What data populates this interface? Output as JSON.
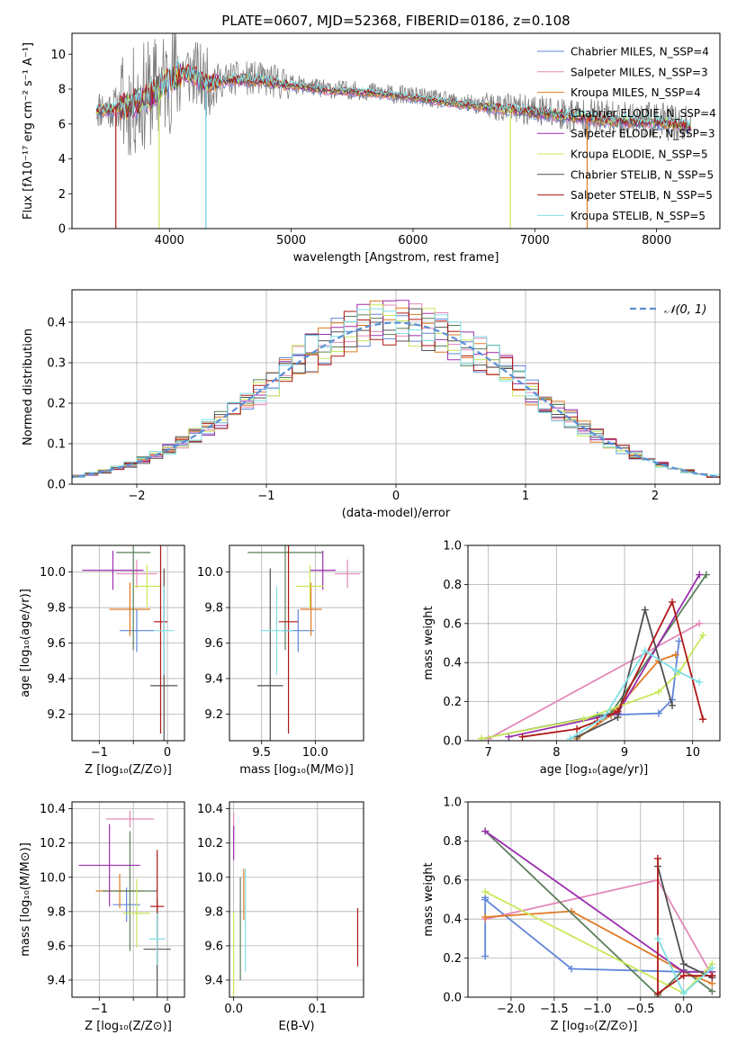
{
  "chart_data": [
    {
      "type": "line",
      "title": "PLATE=0607, MJD=52368, FIBERID=0186, z=0.108",
      "xlabel": "wavelength [Angstrom, rest frame]",
      "ylabel": "Flux [fλ10⁻¹⁷ erg cm⁻² s⁻¹ A⁻¹]",
      "xlim": [
        3200,
        8520
      ],
      "ylim": [
        0,
        11.2
      ],
      "xticks": [
        4000,
        5000,
        6000,
        7000,
        8000
      ],
      "yticks": [
        0,
        2,
        4,
        6,
        8,
        10
      ],
      "legend": "top-right",
      "series": [
        {
          "name": "Chabrier MILES, N_SSP=4",
          "color": "#6185d9"
        },
        {
          "name": "Salpeter MILES, N_SSP=3",
          "color": "#e388b8"
        },
        {
          "name": "Kroupa MILES, N_SSP=4",
          "color": "#e07a25"
        },
        {
          "name": "Chabrier ELODIE, N_SSP=4",
          "color": "#5a7f5a"
        },
        {
          "name": "Salpeter ELODIE, N_SSP=3",
          "color": "#9b2fae"
        },
        {
          "name": "Kroupa ELODIE, N_SSP=5",
          "color": "#c8e85a"
        },
        {
          "name": "Chabrier STELIB, N_SSP=5",
          "color": "#505050"
        },
        {
          "name": "Salpeter STELIB, N_SSP=5",
          "color": "#b01818"
        },
        {
          "name": "Kroupa STELIB, N_SSP=5",
          "color": "#7fdfe6"
        }
      ],
      "data_series": {
        "name": "data",
        "color": "#808080"
      },
      "continuum": {
        "x": [
          3400,
          3500,
          3600,
          3700,
          3800,
          3900,
          4000,
          4100,
          4200,
          4300,
          4500,
          4700,
          5000,
          5300,
          5600,
          6000,
          6400,
          6800,
          7200,
          7600,
          8000,
          8300
        ],
        "y": [
          6.9,
          6.9,
          7.0,
          7.2,
          7.6,
          8.0,
          8.6,
          9.1,
          8.9,
          8.4,
          8.6,
          8.6,
          8.3,
          8.0,
          7.9,
          7.6,
          7.2,
          6.9,
          6.6,
          6.3,
          6.2,
          5.9
        ]
      }
    },
    {
      "type": "histogram",
      "xlabel": "(data-model)/error",
      "ylabel": "Normed distribution",
      "xlim": [
        -2.5,
        2.5
      ],
      "ylim": [
        0,
        0.48
      ],
      "xticks": [
        -2,
        -1,
        0,
        1,
        2
      ],
      "yticks": [
        0.0,
        0.1,
        0.2,
        0.3,
        0.4
      ],
      "legend": "top-right",
      "reference": {
        "name": "𝒩(0, 1)",
        "color": "#5b8fd6",
        "style": "dashed"
      },
      "bin_width": 0.1
    },
    {
      "type": "scatter",
      "xlabel": "Z [log₁₀(Z/Z⊙)]",
      "ylabel": "age  [log₁₀(age/yr)]",
      "xlim": [
        -1.4,
        0.25
      ],
      "ylim": [
        9.05,
        10.15
      ],
      "xticks": [
        -1,
        -0.5,
        0
      ],
      "xtick_labels": [
        "−1",
        "",
        "0"
      ],
      "yticks": [
        9.2,
        9.4,
        9.6,
        9.8,
        10.0
      ],
      "points": [
        {
          "color": "#6185d9",
          "x": -0.45,
          "xerr": 0.25,
          "y": 9.67,
          "yerr": 0.12
        },
        {
          "color": "#e388b8",
          "x": -0.45,
          "xerr": 0.3,
          "y": 9.99,
          "yerr": 0.08
        },
        {
          "color": "#e07a25",
          "x": -0.55,
          "xerr": 0.3,
          "y": 9.79,
          "yerr": 0.15
        },
        {
          "color": "#5a7f5a",
          "x": -0.5,
          "xerr": 0.25,
          "y": 10.11,
          "yerr": 0.55
        },
        {
          "color": "#9b2fae",
          "x": -0.8,
          "xerr": 0.45,
          "y": 10.01,
          "yerr": 0.11
        },
        {
          "color": "#c8e85a",
          "x": -0.3,
          "xerr": 0.2,
          "y": 9.92,
          "yerr": 0.12
        },
        {
          "color": "#505050",
          "x": -0.05,
          "xerr": 0.2,
          "y": 9.36,
          "yerr": 0.66
        },
        {
          "color": "#b01818",
          "x": -0.1,
          "xerr": 0.1,
          "y": 9.72,
          "yerr": 0.63
        },
        {
          "color": "#7fdfe6",
          "x": -0.05,
          "xerr": 0.15,
          "y": 9.67,
          "yerr": 0.25
        }
      ]
    },
    {
      "type": "scatter",
      "xlabel": "mass [log₁₀(M/M⊙)]",
      "xlim": [
        9.2,
        10.45
      ],
      "ylim": [
        9.05,
        10.15
      ],
      "xticks": [
        9.5,
        10.0
      ],
      "xtick_labels": [
        "9.5",
        "10.0"
      ],
      "yticks": [
        9.2,
        9.4,
        9.6,
        9.8,
        10.0
      ],
      "points": [
        {
          "color": "#6185d9",
          "x": 9.84,
          "xerr": 0.15,
          "y": 9.67,
          "yerr": 0.12
        },
        {
          "color": "#e388b8",
          "x": 10.3,
          "xerr": 0.12,
          "y": 9.99,
          "yerr": 0.08
        },
        {
          "color": "#e07a25",
          "x": 9.96,
          "xerr": 0.1,
          "y": 9.79,
          "yerr": 0.15
        },
        {
          "color": "#5a7f5a",
          "x": 9.72,
          "xerr": 0.35,
          "y": 10.11,
          "yerr": 0.55
        },
        {
          "color": "#9b2fae",
          "x": 10.07,
          "xerr": 0.12,
          "y": 10.01,
          "yerr": 0.11
        },
        {
          "color": "#c8e85a",
          "x": 9.95,
          "xerr": 0.13,
          "y": 9.92,
          "yerr": 0.12
        },
        {
          "color": "#505050",
          "x": 9.58,
          "xerr": 0.12,
          "y": 9.36,
          "yerr": 0.66
        },
        {
          "color": "#b01818",
          "x": 9.75,
          "xerr": 0.09,
          "y": 9.72,
          "yerr": 0.63
        },
        {
          "color": "#7fdfe6",
          "x": 9.64,
          "xerr": 0.15,
          "y": 9.67,
          "yerr": 0.25
        }
      ]
    },
    {
      "type": "line",
      "xlabel": "age  [log₁₀(age/yr)]",
      "ylabel": "mass weight",
      "xlim": [
        6.7,
        10.4
      ],
      "ylim": [
        0,
        1.0
      ],
      "xticks": [
        7,
        8,
        9,
        10
      ],
      "yticks": [
        0.0,
        0.2,
        0.4,
        0.6,
        0.8,
        1.0
      ],
      "series": [
        {
          "color": "#6185d9",
          "x": [
            8.6,
            9.5,
            9.7,
            9.8
          ],
          "y": [
            0.13,
            0.14,
            0.21,
            0.51
          ]
        },
        {
          "color": "#e388b8",
          "x": [
            7.0,
            10.1
          ],
          "y": [
            0.01,
            0.6
          ]
        },
        {
          "color": "#e07a25",
          "x": [
            8.3,
            8.8,
            9.5,
            9.75
          ],
          "y": [
            0.01,
            0.13,
            0.41,
            0.44
          ]
        },
        {
          "color": "#5a7f5a",
          "x": [
            6.9,
            8.8,
            10.2
          ],
          "y": [
            0.01,
            0.14,
            0.85
          ]
        },
        {
          "color": "#9b2fae",
          "x": [
            7.3,
            8.9,
            10.1
          ],
          "y": [
            0.02,
            0.14,
            0.85
          ]
        },
        {
          "color": "#c8e85a",
          "x": [
            6.9,
            8.4,
            9.5,
            9.8,
            10.15
          ],
          "y": [
            0.01,
            0.11,
            0.25,
            0.35,
            0.54
          ]
        },
        {
          "color": "#505050",
          "x": [
            8.3,
            8.9,
            9.3,
            9.7
          ],
          "y": [
            0.02,
            0.12,
            0.67,
            0.18
          ]
        },
        {
          "color": "#b01818",
          "x": [
            7.5,
            8.3,
            8.6,
            8.9,
            9.7,
            10.15
          ],
          "y": [
            0.02,
            0.06,
            0.1,
            0.15,
            0.71,
            0.11
          ]
        },
        {
          "color": "#7fdfe6",
          "x": [
            8.2,
            8.7,
            9.3,
            9.75,
            10.1
          ],
          "y": [
            0.01,
            0.12,
            0.46,
            0.36,
            0.3
          ]
        }
      ]
    },
    {
      "type": "scatter",
      "xlabel": "Z [log₁₀(Z/Z⊙)]",
      "ylabel": "mass [log₁₀(M/M⊙)]",
      "xlim": [
        -1.4,
        0.25
      ],
      "ylim": [
        9.3,
        10.44
      ],
      "xticks": [
        -1,
        -0.5,
        0
      ],
      "xtick_labels": [
        "−1",
        "",
        "0"
      ],
      "yticks": [
        9.4,
        9.6,
        9.8,
        10.0,
        10.2,
        10.4
      ],
      "points": [
        {
          "color": "#6185d9",
          "x": -0.6,
          "xerr": 0.2,
          "y": 9.84,
          "yerr": 0.1
        },
        {
          "color": "#e388b8",
          "x": -0.55,
          "xerr": 0.35,
          "y": 10.34,
          "yerr": 0.05
        },
        {
          "color": "#e07a25",
          "x": -0.7,
          "xerr": 0.35,
          "y": 9.92,
          "yerr": 0.1
        },
        {
          "color": "#5a7f5a",
          "x": -0.55,
          "xerr": 0.4,
          "y": 9.92,
          "yerr": 0.35
        },
        {
          "color": "#9b2fae",
          "x": -0.85,
          "xerr": 0.45,
          "y": 10.07,
          "yerr": 0.24
        },
        {
          "color": "#c8e85a",
          "x": -0.45,
          "xerr": 0.2,
          "y": 9.79,
          "yerr": 0.2
        },
        {
          "color": "#505050",
          "x": -0.15,
          "xerr": 0.2,
          "y": 9.58,
          "yerr": 0.3
        },
        {
          "color": "#b01818",
          "x": -0.15,
          "xerr": 0.1,
          "y": 9.83,
          "yerr": 0.33
        },
        {
          "color": "#7fdfe6",
          "x": -0.15,
          "xerr": 0.12,
          "y": 9.64,
          "yerr": 0.15
        }
      ]
    },
    {
      "type": "scatter",
      "xlabel": "E(B-V)",
      "xlim": [
        -0.005,
        0.155
      ],
      "ylim": [
        9.3,
        10.44
      ],
      "xticks": [
        0.0,
        0.1
      ],
      "xtick_labels": [
        "0.0",
        "0.1"
      ],
      "yticks": [
        9.4,
        9.6,
        9.8,
        10.0,
        10.2,
        10.4
      ],
      "points": [
        {
          "color": "#e388b8",
          "x": 0.0,
          "y": 10.3,
          "yerr": 0.08
        },
        {
          "color": "#9b2fae",
          "x": 0.0,
          "y": 10.2,
          "yerr": 0.1
        },
        {
          "color": "#c8e85a",
          "x": 0.0,
          "y": 9.55,
          "yerr": 0.25
        },
        {
          "color": "#5a7f5a",
          "x": 0.008,
          "y": 9.7,
          "yerr": 0.3
        },
        {
          "color": "#e07a25",
          "x": 0.012,
          "y": 9.9,
          "yerr": 0.15
        },
        {
          "color": "#7fdfe6",
          "x": 0.014,
          "y": 9.75,
          "yerr": 0.3
        },
        {
          "color": "#b01818",
          "x": 0.148,
          "y": 9.65,
          "yerr": 0.17
        }
      ]
    },
    {
      "type": "line",
      "xlabel": "Z [log₁₀(Z/Z⊙)]",
      "ylabel": "mass weight",
      "xlim": [
        -2.5,
        0.42
      ],
      "ylim": [
        0,
        1.0
      ],
      "xticks": [
        -2.0,
        -1.5,
        -1.0,
        -0.5,
        0.0
      ],
      "xtick_labels": [
        "−2.0",
        "−1.5",
        "−1.0",
        "−0.5",
        "0.0"
      ],
      "yticks": [
        0.0,
        0.2,
        0.4,
        0.6,
        0.8,
        1.0
      ],
      "series": [
        {
          "color": "#6185d9",
          "x": [
            -2.3,
            -2.3,
            -2.3,
            -1.3,
            0.0,
            0.33
          ],
          "y": [
            0.21,
            0.51,
            0.5,
            0.145,
            0.13,
            0.13
          ]
        },
        {
          "color": "#e388b8",
          "x": [
            -2.3,
            -0.3,
            0.33
          ],
          "y": [
            0.4,
            0.6,
            0.11
          ]
        },
        {
          "color": "#e07a25",
          "x": [
            -2.3,
            -1.3,
            0.0,
            0.33
          ],
          "y": [
            0.41,
            0.44,
            0.13,
            0.07
          ]
        },
        {
          "color": "#5a7f5a",
          "x": [
            -2.3,
            -0.3,
            0.0,
            0.33
          ],
          "y": [
            0.85,
            0.01,
            0.14,
            0.03
          ]
        },
        {
          "color": "#9b2fae",
          "x": [
            -2.3,
            0.0,
            0.33
          ],
          "y": [
            0.85,
            0.13,
            0.13
          ]
        },
        {
          "color": "#c8e85a",
          "x": [
            -2.3,
            0.0,
            0.33
          ],
          "y": [
            0.54,
            0.02,
            0.17
          ]
        },
        {
          "color": "#505050",
          "x": [
            -0.3,
            0.0,
            0.33
          ],
          "y": [
            0.67,
            0.17,
            0.1
          ]
        },
        {
          "color": "#b01818",
          "x": [
            -0.3,
            -0.3,
            0.0,
            0.33
          ],
          "y": [
            0.71,
            0.02,
            0.11,
            0.11
          ]
        },
        {
          "color": "#7fdfe6",
          "x": [
            -0.3,
            0.0,
            0.33
          ],
          "y": [
            0.3,
            0.02,
            0.15
          ]
        }
      ]
    }
  ]
}
